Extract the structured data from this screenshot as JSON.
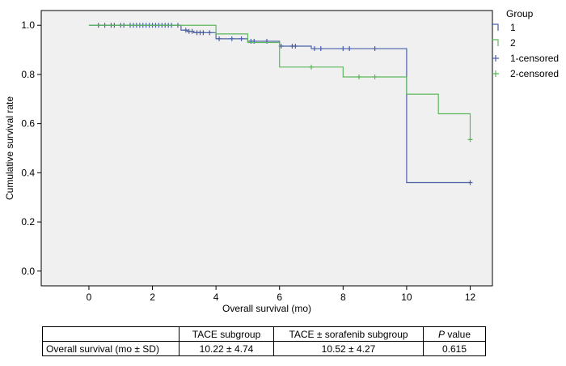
{
  "chart_data": {
    "type": "line",
    "subtype": "kaplan-meier",
    "xlabel": "Overall survival (mo)",
    "ylabel": "Cumulative survival rate",
    "xlim": [
      -1.5,
      12.7
    ],
    "ylim": [
      -0.06,
      1.06
    ],
    "xticks": [
      0,
      2,
      4,
      6,
      8,
      10,
      12
    ],
    "yticks": [
      0.0,
      0.2,
      0.4,
      0.6,
      0.8,
      1.0
    ],
    "xtick_labels": [
      "0",
      "2",
      "4",
      "6",
      "8",
      "10",
      "12"
    ],
    "ytick_labels": [
      "0.0",
      "0.2",
      "0.4",
      "0.6",
      "0.8",
      "1.0"
    ],
    "grid": false,
    "legend": {
      "title": "Group",
      "position": "right",
      "entries": [
        "1",
        "2",
        "1-censored",
        "2-censored"
      ]
    },
    "series": [
      {
        "name": "1",
        "color": "#4a5fa8",
        "steps": [
          [
            0,
            1.0
          ],
          [
            2.9,
            0.98
          ],
          [
            3.1,
            0.975
          ],
          [
            3.3,
            0.97
          ],
          [
            4.0,
            0.945
          ],
          [
            5.0,
            0.935
          ],
          [
            6.0,
            0.915
          ],
          [
            7.0,
            0.905
          ],
          [
            10.0,
            0.36
          ],
          [
            12.0,
            0.36
          ]
        ],
        "censored": [
          0.3,
          0.5,
          0.7,
          0.8,
          1.0,
          1.1,
          1.3,
          1.4,
          1.5,
          1.6,
          1.7,
          1.8,
          1.9,
          2.0,
          2.1,
          2.2,
          2.3,
          2.4,
          2.5,
          2.6,
          2.8,
          3.05,
          3.15,
          3.25,
          3.4,
          3.5,
          3.6,
          3.8,
          4.1,
          4.5,
          4.8,
          5.1,
          5.2,
          5.6,
          6.05,
          6.4,
          6.5,
          7.1,
          7.3,
          8.0,
          8.2,
          9.0,
          12.0
        ]
      },
      {
        "name": "2",
        "color": "#5cb85c",
        "steps": [
          [
            0,
            1.0
          ],
          [
            4.0,
            0.965
          ],
          [
            5.0,
            0.93
          ],
          [
            6.0,
            0.83
          ],
          [
            8.0,
            0.79
          ],
          [
            10.0,
            0.72
          ],
          [
            11.0,
            0.64
          ],
          [
            12.0,
            0.535
          ]
        ],
        "censored": [
          7.0,
          8.5,
          9.0,
          12.0
        ]
      }
    ]
  },
  "table": {
    "headers": [
      "",
      "TACE subgroup",
      "TACE ± sorafenib subgroup"
    ],
    "p_header": "P",
    "p_header_suffix": " value",
    "row": {
      "label": "Overall survival (mo ± SD)",
      "tace": "10.22 ± 4.74",
      "tace_sorafenib": "10.52 ± 4.27",
      "p_value": "0.615"
    }
  }
}
